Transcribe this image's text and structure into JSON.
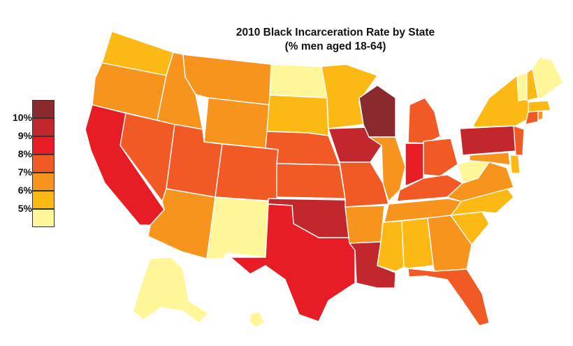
{
  "title": {
    "line1": "2010 Black Incarceration Rate by State",
    "line2": "(% men aged 18-64)"
  },
  "legend": [
    {
      "label": "10%",
      "color": "#8b2a2e"
    },
    {
      "label": "9%",
      "color": "#c1272d"
    },
    {
      "label": "8%",
      "color": "#e81c24"
    },
    {
      "label": "7%",
      "color": "#f15a24"
    },
    {
      "label": "6%",
      "color": "#f7941d"
    },
    {
      "label": "5%",
      "color": "#fdb913"
    },
    {
      "label": "",
      "color": "#fff599"
    }
  ],
  "states": {
    "WA": 5,
    "OR": 6,
    "CA": 8,
    "NV": 7,
    "ID": 6,
    "MT": 6,
    "WY": 6,
    "UT": 7,
    "AZ": 6,
    "NM": 4,
    "CO": 7,
    "ND": 4,
    "SD": 5,
    "NE": 7,
    "KS": 7,
    "OK": 9,
    "TX": 8,
    "MN": 5,
    "IA": 9,
    "MO": 7,
    "AR": 6,
    "LA": 9,
    "WI": 10,
    "IL": 6,
    "IN": 8,
    "MI": 7,
    "OH": 7,
    "KY": 7,
    "TN": 6,
    "MS": 5,
    "AL": 5,
    "GA": 6,
    "FL": 7,
    "SC": 5,
    "NC": 5,
    "VA": 6,
    "WV": 4,
    "PA": 9,
    "NY": 5,
    "NJ": 7,
    "DE": 5,
    "MD": 6,
    "VT": 4,
    "NH": 5,
    "ME": 4,
    "MA": 5,
    "CT": 7,
    "RI": 6,
    "AK": 4,
    "HI": 4
  }
}
